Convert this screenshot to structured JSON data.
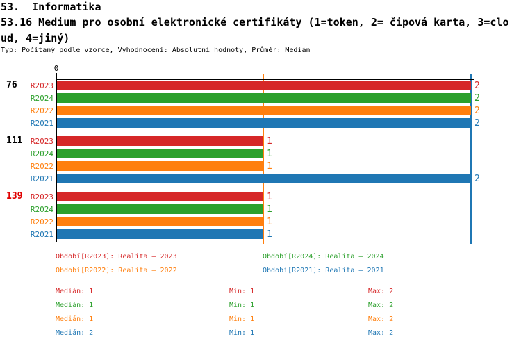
{
  "header": {
    "title_line1": "53.  Informatika",
    "title_line2": "53.16 Medium pro osobní elektronické certifikáty (1=token, 2= čipová karta, 3=clo",
    "title_line3": "ud, 4=jiný)",
    "meta": "Typ: Počítaný podle vzorce, Vyhodnocení: Absolutní hodnoty, Průměr: Medián"
  },
  "chart_data": {
    "type": "bar",
    "orientation": "horizontal",
    "title": "53.16 Medium pro osobní elektronické certifikáty (1=token, 2= čipová karta, 3=cloud, 4=jiný)",
    "value_scale": {
      "tick_labels": [
        "0"
      ],
      "min": 0,
      "max": 2
    },
    "legend_position": "bottom",
    "grid": false,
    "series_order": [
      "R2023",
      "R2024",
      "R2022",
      "R2021"
    ],
    "series_colors": {
      "R2023": "#d62728",
      "R2024": "#2ca02c",
      "R2022": "#ff7f0e",
      "R2021": "#1f77b4"
    },
    "groups": [
      {
        "label": "76",
        "label_color": "#000000",
        "bars": [
          {
            "series": "R2023",
            "value": 2
          },
          {
            "series": "R2024",
            "value": 2
          },
          {
            "series": "R2022",
            "value": 2
          },
          {
            "series": "R2021",
            "value": 2
          }
        ]
      },
      {
        "label": "111",
        "label_color": "#000000",
        "bars": [
          {
            "series": "R2023",
            "value": 1
          },
          {
            "series": "R2024",
            "value": 1
          },
          {
            "series": "R2022",
            "value": 1
          },
          {
            "series": "R2021",
            "value": 2
          }
        ]
      },
      {
        "label": "139",
        "label_color": "#e00000",
        "bars": [
          {
            "series": "R2023",
            "value": 1
          },
          {
            "series": "R2024",
            "value": 1
          },
          {
            "series": "R2022",
            "value": 1
          },
          {
            "series": "R2021",
            "value": 1
          }
        ]
      }
    ],
    "median_lines": [
      {
        "series": "R2023",
        "value": 1
      },
      {
        "series": "R2024",
        "value": 1
      },
      {
        "series": "R2022",
        "value": 1
      },
      {
        "series": "R2021",
        "value": 2
      }
    ]
  },
  "legend": {
    "items": [
      {
        "text": "Období[R2023]: Realita – 2023",
        "color": "#d62728"
      },
      {
        "text": "Období[R2024]: Realita – 2024",
        "color": "#2ca02c"
      },
      {
        "text": "Období[R2022]: Realita – 2022",
        "color": "#ff7f0e"
      },
      {
        "text": "Období[R2021]: Realita – 2021",
        "color": "#1f77b4"
      }
    ]
  },
  "stats": {
    "rows": [
      {
        "series": "R2023",
        "color": "#d62728",
        "median": "Medián: 1",
        "min": "Min: 1",
        "max": "Max: 2"
      },
      {
        "series": "R2024",
        "color": "#2ca02c",
        "median": "Medián: 1",
        "min": "Min: 1",
        "max": "Max: 2"
      },
      {
        "series": "R2022",
        "color": "#ff7f0e",
        "median": "Medián: 1",
        "min": "Min: 1",
        "max": "Max: 2"
      },
      {
        "series": "R2021",
        "color": "#1f77b4",
        "median": "Medián: 2",
        "min": "Min: 1",
        "max": "Max: 2"
      }
    ]
  }
}
